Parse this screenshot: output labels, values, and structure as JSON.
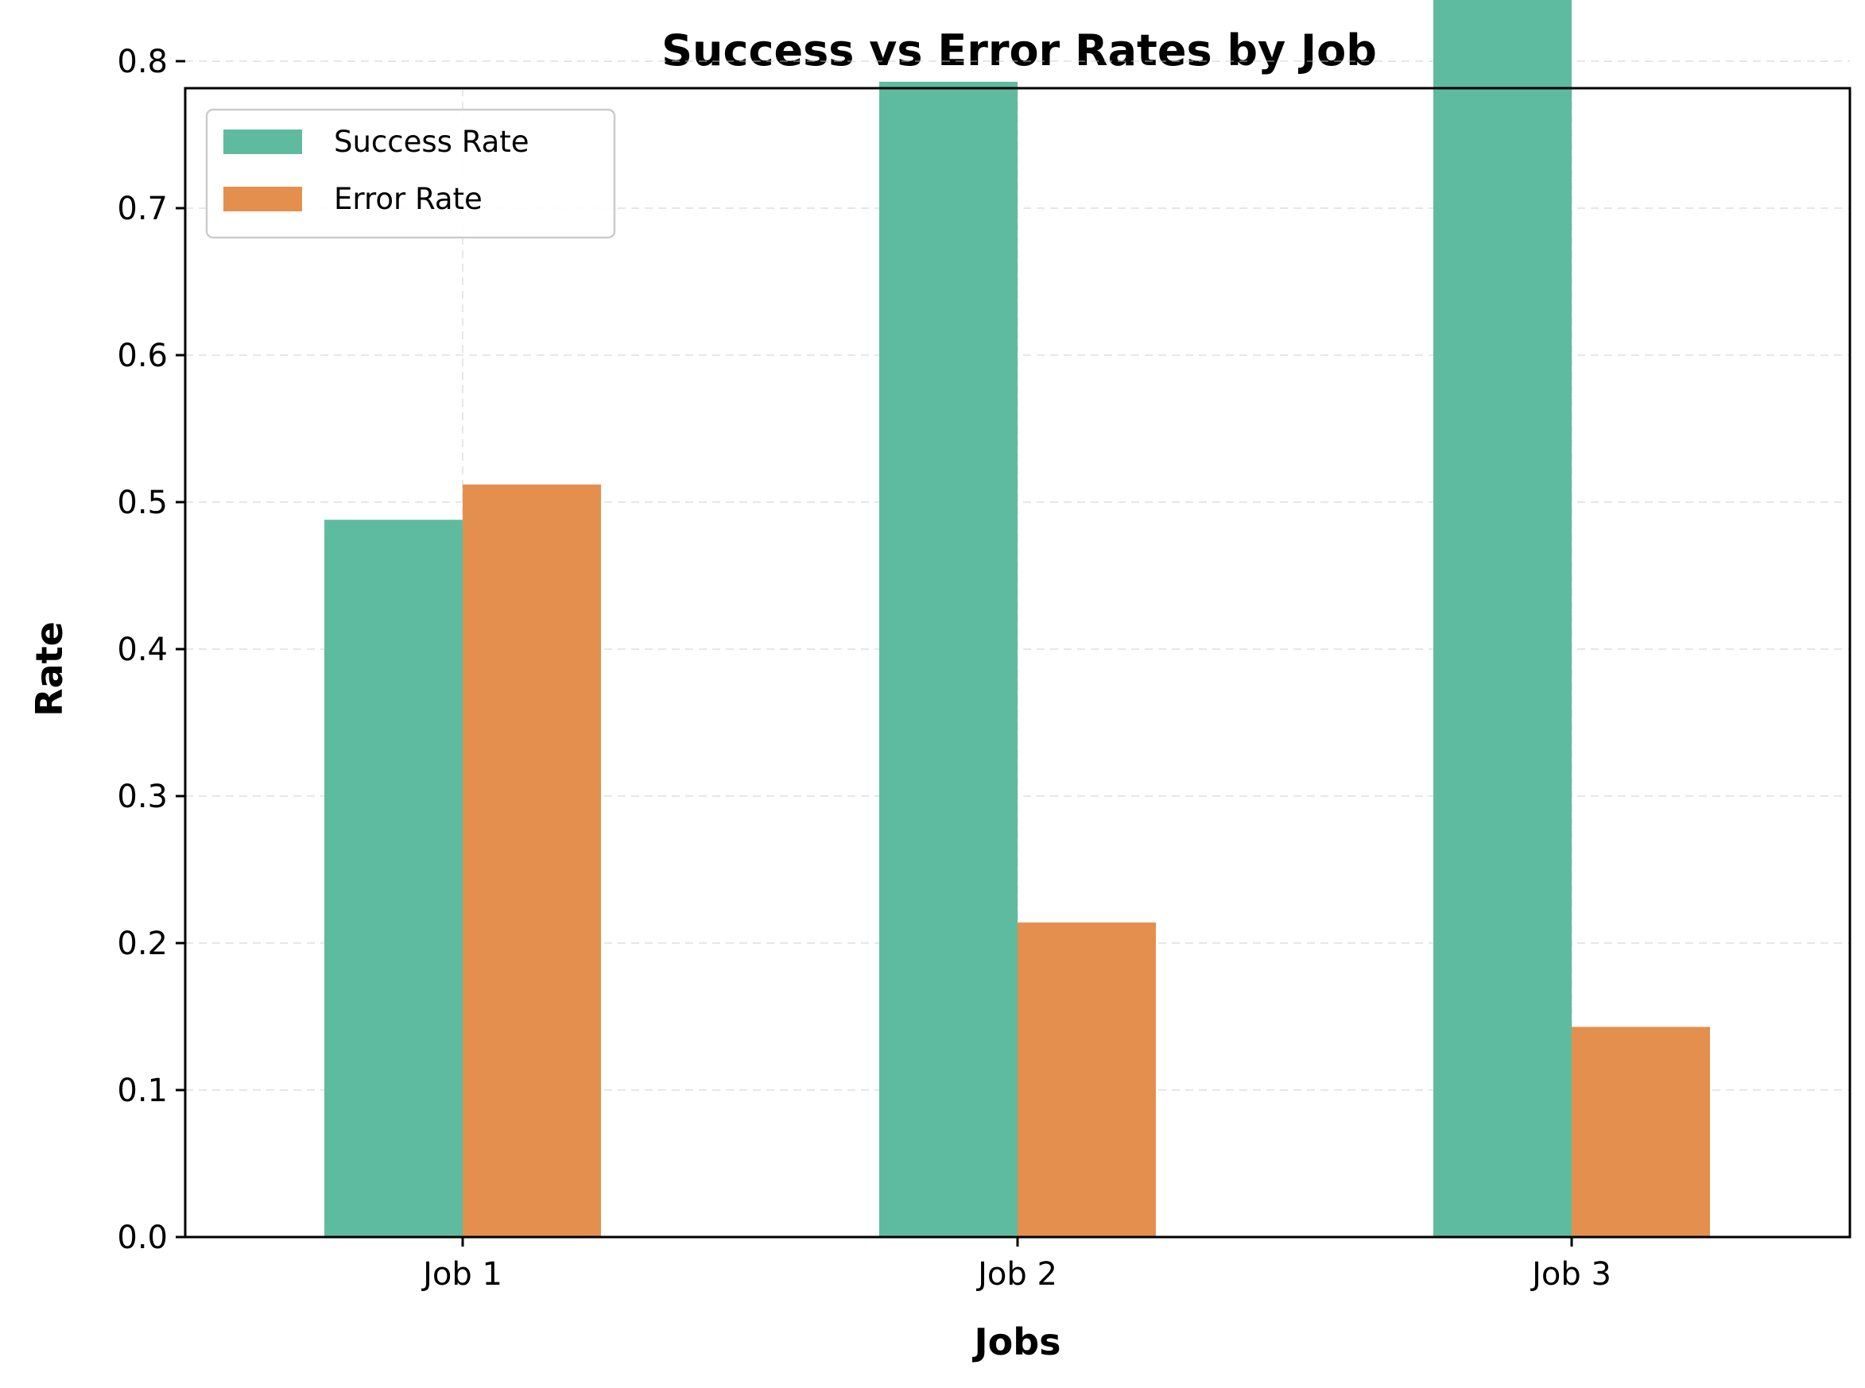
{
  "chart_data": {
    "type": "bar",
    "title": "Success vs Error Rates by Job",
    "xlabel": "Jobs",
    "ylabel": "Rate",
    "categories": [
      "Job 1",
      "Job 2",
      "Job 3"
    ],
    "series": [
      {
        "name": "Success Rate",
        "values": [
          0.488,
          0.786,
          0.857
        ],
        "color": "#5fbb9f"
      },
      {
        "name": "Error Rate",
        "values": [
          0.512,
          0.214,
          0.143
        ],
        "color": "#e58f4f"
      }
    ],
    "ylim": [
      0,
      0.9
    ],
    "yticks": [
      "0.0",
      "0.1",
      "0.2",
      "0.3",
      "0.4",
      "0.5",
      "0.6",
      "0.7",
      "0.8"
    ],
    "grid": true,
    "legend_position": "top-left"
  }
}
